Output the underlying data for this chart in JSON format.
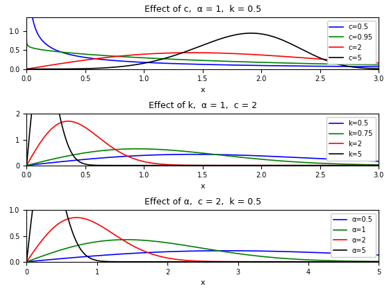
{
  "plot1": {
    "title": "Effect of c,  α = 1,  k = 0.5",
    "xlabel": "x",
    "alpha": 1,
    "k": 0.5,
    "c_values": [
      0.5,
      0.95,
      2,
      5
    ],
    "colors": [
      "blue",
      "green",
      "red",
      "black"
    ],
    "labels": [
      "c=0.5",
      "c=0.95",
      "c=2",
      "c=5"
    ],
    "xlim": [
      0,
      3
    ],
    "ylim": [
      0,
      1.35
    ]
  },
  "plot2": {
    "title": "Effect of k,  α = 1,  c = 2",
    "xlabel": "x",
    "alpha": 1,
    "c": 2,
    "k_values": [
      0.5,
      0.75,
      2,
      5
    ],
    "colors": [
      "blue",
      "green",
      "red",
      "black"
    ],
    "labels": [
      "k=0.5",
      "k=0.75",
      "k=2",
      "k=5"
    ],
    "xlim": [
      0,
      3
    ],
    "ylim": [
      0,
      2
    ]
  },
  "plot3": {
    "title": "Effect of α,  c = 2,  k = 0.5",
    "xlabel": "x",
    "c": 2,
    "k": 0.5,
    "alpha_values": [
      0.5,
      1,
      2,
      5
    ],
    "colors": [
      "blue",
      "green",
      "red",
      "black"
    ],
    "labels": [
      "α=0.5",
      "α=1",
      "α=2",
      "α=5"
    ],
    "xlim": [
      0,
      5
    ],
    "ylim": [
      0,
      1
    ]
  },
  "figsize": [
    5.6,
    4.2
  ],
  "dpi": 100
}
